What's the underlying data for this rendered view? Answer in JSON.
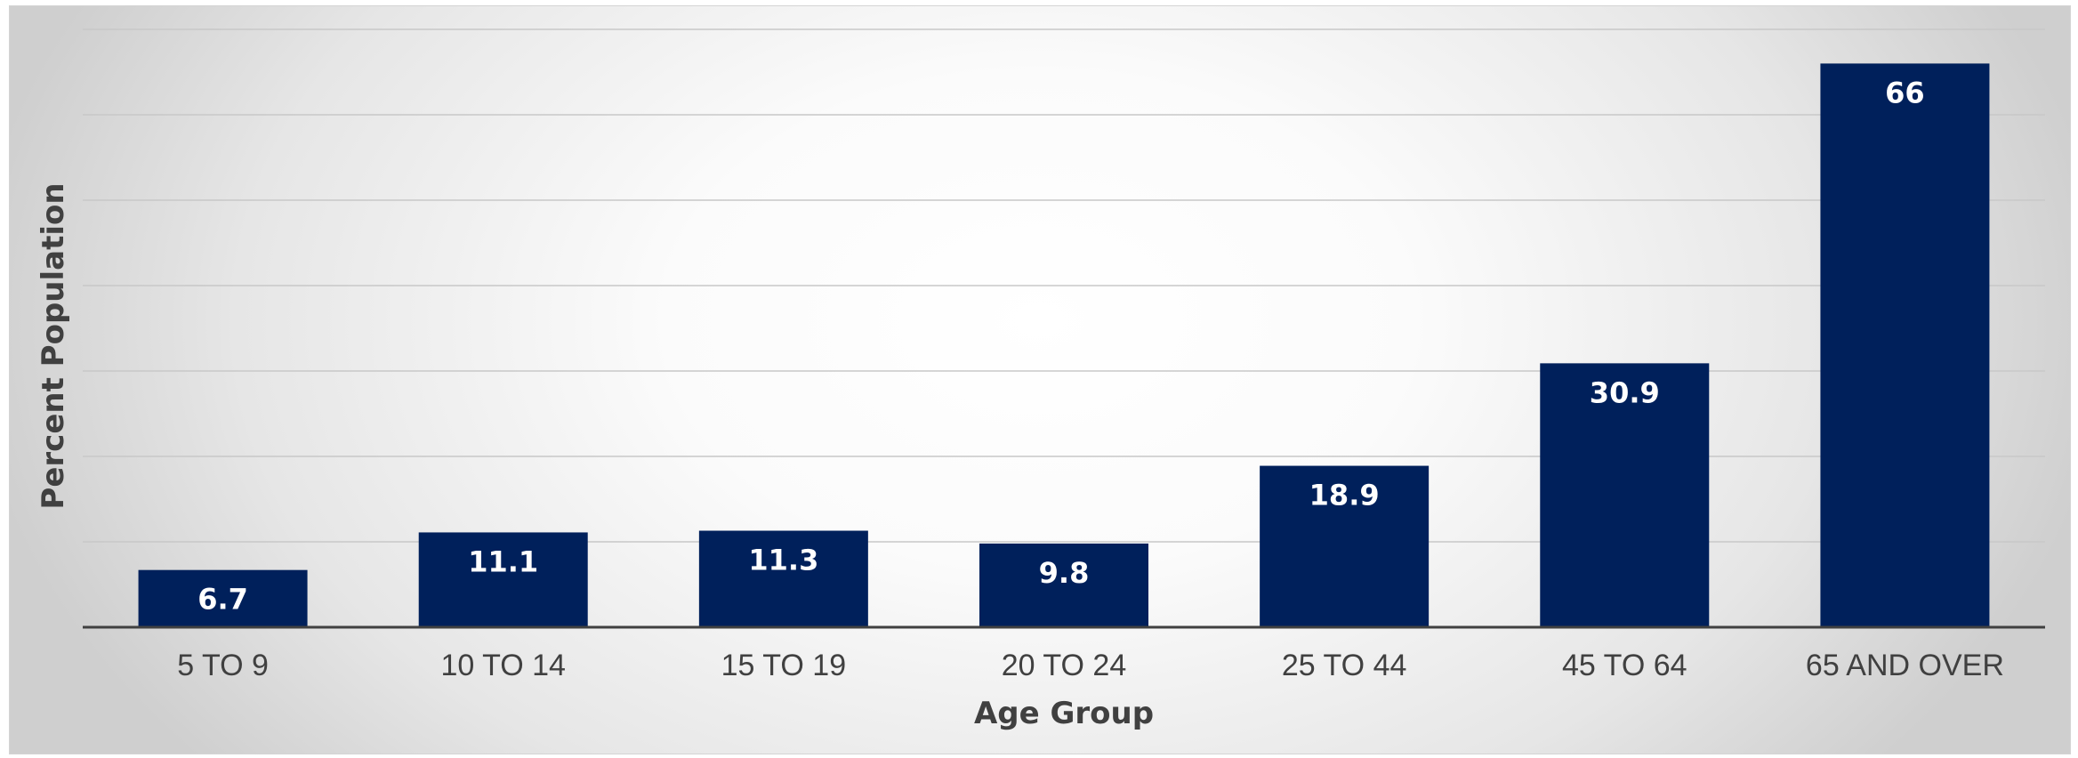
{
  "chart_data": {
    "type": "bar",
    "title": "",
    "xlabel": "Age Group",
    "ylabel": "Percent Population",
    "categories": [
      "5 TO 9",
      "10 TO 14",
      "15 TO 19",
      "20 TO 24",
      "25 TO 44",
      "45 TO 64",
      "65 AND OVER"
    ],
    "values": [
      6.7,
      11.1,
      11.3,
      9.8,
      18.9,
      30.9,
      66
    ],
    "data_labels": [
      "6.7",
      "11.1",
      "11.3",
      "9.8",
      "18.9",
      "30.9",
      "66"
    ],
    "ylim": [
      0,
      70
    ],
    "y_gridline_step": 10,
    "grid": true,
    "legend": "none",
    "colors": {
      "bar": "#00205b",
      "gridline": "#c8c8c8",
      "axis": "#404040",
      "text": "#404040",
      "data_label": "#ffffff"
    }
  }
}
